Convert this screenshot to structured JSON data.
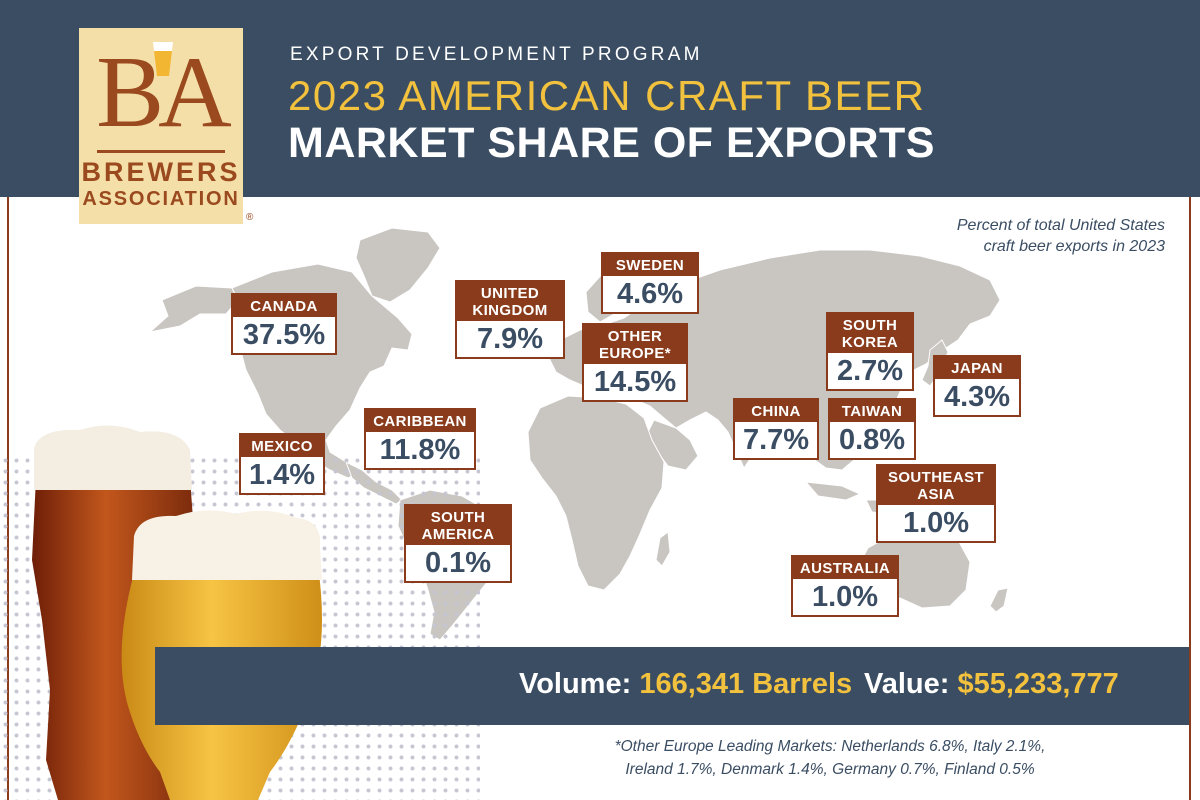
{
  "header": {
    "kicker": "EXPORT DEVELOPMENT PROGRAM",
    "title_line1": "2023 AMERICAN CRAFT BEER",
    "title_line2": "MARKET SHARE OF EXPORTS"
  },
  "logo": {
    "monogram": "BA",
    "word1": "BREWERS",
    "word2": "ASSOCIATION",
    "registered": "®"
  },
  "note": {
    "line1": "Percent of total United States",
    "line2": "craft beer exports in 2023"
  },
  "colors": {
    "navy": "#3a4d63",
    "gold": "#f2c13d",
    "rust": "#8a3b1b",
    "map_gray": "#c9c5c1"
  },
  "chart_data": {
    "type": "table",
    "categories": [
      "CANADA",
      "UNITED KINGDOM",
      "SWEDEN",
      "OTHER EUROPE*",
      "SOUTH KOREA",
      "JAPAN",
      "CARIBBEAN",
      "MEXICO",
      "CHINA",
      "TAIWAN",
      "SOUTHEAST ASIA",
      "SOUTH AMERICA",
      "AUSTRALIA"
    ],
    "values": [
      37.5,
      7.9,
      4.6,
      14.5,
      2.7,
      4.3,
      11.8,
      1.4,
      7.7,
      0.8,
      1.0,
      0.1,
      1.0
    ],
    "unit": "%",
    "markets": [
      {
        "name": [
          "CANADA"
        ],
        "value": "37.5%"
      },
      {
        "name": [
          "UNITED",
          "KINGDOM"
        ],
        "value": "7.9%"
      },
      {
        "name": [
          "SWEDEN"
        ],
        "value": "4.6%"
      },
      {
        "name": [
          "OTHER",
          "EUROPE*"
        ],
        "value": "14.5%"
      },
      {
        "name": [
          "SOUTH",
          "KOREA"
        ],
        "value": "2.7%"
      },
      {
        "name": [
          "JAPAN"
        ],
        "value": "4.3%"
      },
      {
        "name": [
          "CARIBBEAN"
        ],
        "value": "11.8%"
      },
      {
        "name": [
          "MEXICO"
        ],
        "value": "1.4%"
      },
      {
        "name": [
          "CHINA"
        ],
        "value": "7.7%"
      },
      {
        "name": [
          "TAIWAN"
        ],
        "value": "0.8%"
      },
      {
        "name": [
          "SOUTHEAST",
          "ASIA"
        ],
        "value": "1.0%"
      },
      {
        "name": [
          "SOUTH",
          "AMERICA"
        ],
        "value": "0.1%"
      },
      {
        "name": [
          "AUSTRALIA"
        ],
        "value": "1.0%"
      }
    ]
  },
  "stats": {
    "volume_label": "Volume:",
    "volume_value": "166,341 Barrels",
    "value_label": "Value:",
    "value_value": "$55,233,777"
  },
  "footnote": {
    "line1": "*Other Europe Leading Markets: Netherlands 6.8%, Italy 2.1%,",
    "line2": "Ireland 1.7%, Denmark 1.4%,  Germany 0.7%, Finland 0.5%"
  }
}
